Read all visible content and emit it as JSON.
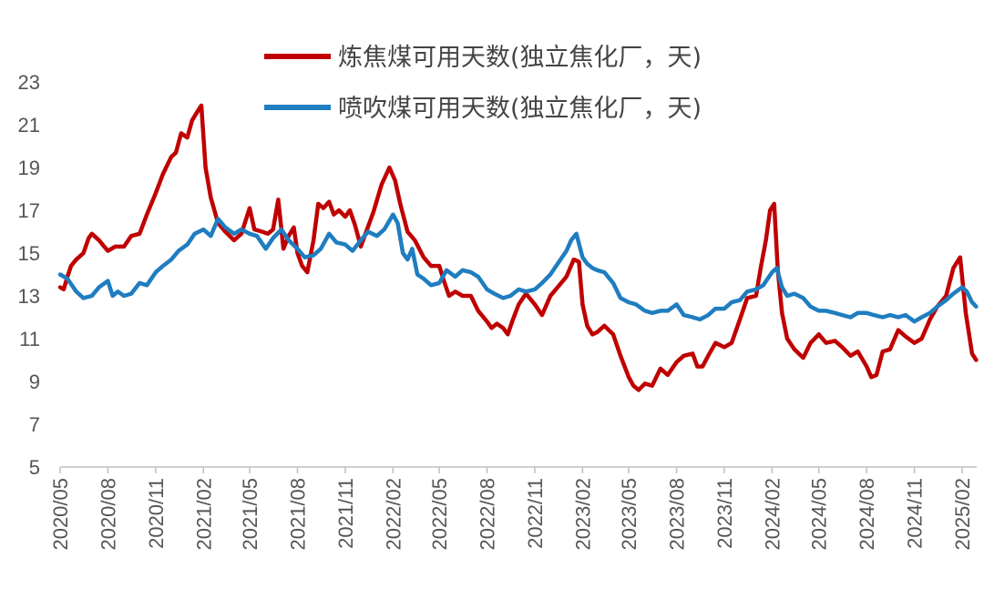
{
  "chart_data": {
    "type": "line",
    "title": "",
    "xlabel": "",
    "ylabel": "",
    "ylim": [
      5,
      23
    ],
    "y_ticks": [
      5,
      7,
      9,
      11,
      13,
      15,
      17,
      19,
      21,
      23
    ],
    "x_range": [
      "2020-05-01",
      "2025-03-01"
    ],
    "x_tick_labels": [
      "2020/05",
      "2020/08",
      "2020/11",
      "2021/02",
      "2021/05",
      "2021/08",
      "2021/11",
      "2022/02",
      "2022/05",
      "2022/08",
      "2022/11",
      "2023/02",
      "2023/05",
      "2023/08",
      "2023/11",
      "2024/02",
      "2024/05",
      "2024/08",
      "2024/11",
      "2025/02"
    ],
    "grid": false,
    "legend_position": "top",
    "series": [
      {
        "name": "炼焦煤可用天数(独立焦化厂，天)",
        "color": "#C00000",
        "points": [
          [
            "2020-05-01",
            13.4
          ],
          [
            "2020-05-08",
            13.3
          ],
          [
            "2020-05-15",
            13.9
          ],
          [
            "2020-05-22",
            14.4
          ],
          [
            "2020-06-01",
            14.7
          ],
          [
            "2020-06-15",
            15.0
          ],
          [
            "2020-06-25",
            15.7
          ],
          [
            "2020-07-01",
            15.9
          ],
          [
            "2020-07-15",
            15.6
          ],
          [
            "2020-07-25",
            15.3
          ],
          [
            "2020-08-01",
            15.1
          ],
          [
            "2020-08-15",
            15.3
          ],
          [
            "2020-09-01",
            15.3
          ],
          [
            "2020-09-15",
            15.8
          ],
          [
            "2020-10-01",
            15.9
          ],
          [
            "2020-10-15",
            16.8
          ],
          [
            "2020-11-01",
            17.8
          ],
          [
            "2020-11-15",
            18.7
          ],
          [
            "2020-12-01",
            19.5
          ],
          [
            "2020-12-10",
            19.7
          ],
          [
            "2020-12-20",
            20.6
          ],
          [
            "2021-01-01",
            20.4
          ],
          [
            "2021-01-10",
            21.2
          ],
          [
            "2021-01-20",
            21.6
          ],
          [
            "2021-01-28",
            21.9
          ],
          [
            "2021-02-05",
            19.0
          ],
          [
            "2021-02-15",
            17.6
          ],
          [
            "2021-03-01",
            16.4
          ],
          [
            "2021-03-15",
            16.0
          ],
          [
            "2021-04-01",
            15.6
          ],
          [
            "2021-04-15",
            15.9
          ],
          [
            "2021-05-01",
            17.1
          ],
          [
            "2021-05-10",
            16.1
          ],
          [
            "2021-05-25",
            16.0
          ],
          [
            "2021-06-05",
            15.9
          ],
          [
            "2021-06-15",
            16.1
          ],
          [
            "2021-06-25",
            17.5
          ],
          [
            "2021-07-05",
            15.2
          ],
          [
            "2021-07-15",
            15.8
          ],
          [
            "2021-07-25",
            16.2
          ],
          [
            "2021-08-01",
            15.0
          ],
          [
            "2021-08-10",
            14.4
          ],
          [
            "2021-08-20",
            14.1
          ],
          [
            "2021-09-01",
            15.6
          ],
          [
            "2021-09-10",
            17.3
          ],
          [
            "2021-09-20",
            17.1
          ],
          [
            "2021-10-01",
            17.4
          ],
          [
            "2021-10-10",
            16.8
          ],
          [
            "2021-10-20",
            17.0
          ],
          [
            "2021-11-01",
            16.7
          ],
          [
            "2021-11-10",
            17.0
          ],
          [
            "2021-11-20",
            16.3
          ],
          [
            "2021-12-01",
            15.3
          ],
          [
            "2021-12-10",
            15.9
          ],
          [
            "2021-12-25",
            16.9
          ],
          [
            "2022-01-10",
            18.2
          ],
          [
            "2022-01-25",
            19.0
          ],
          [
            "2022-02-05",
            18.4
          ],
          [
            "2022-02-15",
            17.3
          ],
          [
            "2022-03-01",
            16.0
          ],
          [
            "2022-03-15",
            15.6
          ],
          [
            "2022-04-01",
            14.8
          ],
          [
            "2022-04-15",
            14.4
          ],
          [
            "2022-05-01",
            14.4
          ],
          [
            "2022-05-10",
            13.7
          ],
          [
            "2022-05-20",
            13.0
          ],
          [
            "2022-06-01",
            13.2
          ],
          [
            "2022-06-15",
            13.0
          ],
          [
            "2022-07-01",
            13.0
          ],
          [
            "2022-07-15",
            12.3
          ],
          [
            "2022-08-01",
            11.8
          ],
          [
            "2022-08-10",
            11.5
          ],
          [
            "2022-08-20",
            11.7
          ],
          [
            "2022-09-01",
            11.5
          ],
          [
            "2022-09-10",
            11.2
          ],
          [
            "2022-09-20",
            11.9
          ],
          [
            "2022-10-01",
            12.6
          ],
          [
            "2022-10-15",
            13.1
          ],
          [
            "2022-11-01",
            12.6
          ],
          [
            "2022-11-15",
            12.1
          ],
          [
            "2022-12-01",
            13.0
          ],
          [
            "2022-12-15",
            13.4
          ],
          [
            "2023-01-01",
            13.9
          ],
          [
            "2023-01-15",
            14.7
          ],
          [
            "2023-01-25",
            14.6
          ],
          [
            "2023-02-01",
            12.6
          ],
          [
            "2023-02-10",
            11.6
          ],
          [
            "2023-02-20",
            11.2
          ],
          [
            "2023-03-01",
            11.3
          ],
          [
            "2023-03-15",
            11.6
          ],
          [
            "2023-04-01",
            11.2
          ],
          [
            "2023-04-15",
            10.2
          ],
          [
            "2023-05-01",
            9.2
          ],
          [
            "2023-05-10",
            8.8
          ],
          [
            "2023-05-20",
            8.6
          ],
          [
            "2023-06-01",
            8.9
          ],
          [
            "2023-06-15",
            8.8
          ],
          [
            "2023-07-01",
            9.6
          ],
          [
            "2023-07-15",
            9.3
          ],
          [
            "2023-08-01",
            9.9
          ],
          [
            "2023-08-15",
            10.2
          ],
          [
            "2023-09-01",
            10.3
          ],
          [
            "2023-09-10",
            9.7
          ],
          [
            "2023-09-20",
            9.7
          ],
          [
            "2023-10-01",
            10.2
          ],
          [
            "2023-10-15",
            10.8
          ],
          [
            "2023-11-01",
            10.6
          ],
          [
            "2023-11-15",
            10.8
          ],
          [
            "2023-12-01",
            11.9
          ],
          [
            "2023-12-15",
            12.9
          ],
          [
            "2024-01-01",
            13.0
          ],
          [
            "2024-01-10",
            14.3
          ],
          [
            "2024-01-20",
            15.6
          ],
          [
            "2024-01-28",
            17.0
          ],
          [
            "2024-02-05",
            17.3
          ],
          [
            "2024-02-12",
            14.2
          ],
          [
            "2024-02-20",
            12.2
          ],
          [
            "2024-03-01",
            11.0
          ],
          [
            "2024-03-15",
            10.5
          ],
          [
            "2024-04-01",
            10.1
          ],
          [
            "2024-04-15",
            10.8
          ],
          [
            "2024-05-01",
            11.2
          ],
          [
            "2024-05-15",
            10.8
          ],
          [
            "2024-06-01",
            10.9
          ],
          [
            "2024-06-15",
            10.6
          ],
          [
            "2024-07-01",
            10.2
          ],
          [
            "2024-07-15",
            10.4
          ],
          [
            "2024-08-01",
            9.7
          ],
          [
            "2024-08-10",
            9.2
          ],
          [
            "2024-08-20",
            9.3
          ],
          [
            "2024-09-01",
            10.4
          ],
          [
            "2024-09-15",
            10.5
          ],
          [
            "2024-10-01",
            11.4
          ],
          [
            "2024-10-15",
            11.1
          ],
          [
            "2024-11-01",
            10.8
          ],
          [
            "2024-11-15",
            11.0
          ],
          [
            "2024-12-01",
            11.9
          ],
          [
            "2024-12-15",
            12.5
          ],
          [
            "2025-01-01",
            13.0
          ],
          [
            "2025-01-15",
            14.3
          ],
          [
            "2025-01-28",
            14.8
          ],
          [
            "2025-02-08",
            12.2
          ],
          [
            "2025-02-20",
            10.3
          ],
          [
            "2025-02-28",
            10.0
          ]
        ]
      },
      {
        "name": "喷吹煤可用天数(独立焦化厂，天)",
        "color": "#1F7DC0",
        "points": [
          [
            "2020-05-01",
            14.0
          ],
          [
            "2020-05-15",
            13.8
          ],
          [
            "2020-06-01",
            13.2
          ],
          [
            "2020-06-15",
            12.9
          ],
          [
            "2020-07-01",
            13.0
          ],
          [
            "2020-07-15",
            13.4
          ],
          [
            "2020-08-01",
            13.7
          ],
          [
            "2020-08-10",
            13.0
          ],
          [
            "2020-08-20",
            13.2
          ],
          [
            "2020-09-01",
            13.0
          ],
          [
            "2020-09-15",
            13.1
          ],
          [
            "2020-10-01",
            13.6
          ],
          [
            "2020-10-15",
            13.5
          ],
          [
            "2020-11-01",
            14.1
          ],
          [
            "2020-11-15",
            14.4
          ],
          [
            "2020-12-01",
            14.7
          ],
          [
            "2020-12-15",
            15.1
          ],
          [
            "2021-01-01",
            15.4
          ],
          [
            "2021-01-15",
            15.9
          ],
          [
            "2021-02-01",
            16.1
          ],
          [
            "2021-02-15",
            15.8
          ],
          [
            "2021-03-01",
            16.6
          ],
          [
            "2021-03-15",
            16.2
          ],
          [
            "2021-04-01",
            15.9
          ],
          [
            "2021-04-15",
            16.1
          ],
          [
            "2021-05-01",
            15.9
          ],
          [
            "2021-05-15",
            15.8
          ],
          [
            "2021-06-01",
            15.2
          ],
          [
            "2021-06-15",
            15.7
          ],
          [
            "2021-07-01",
            16.1
          ],
          [
            "2021-07-15",
            15.6
          ],
          [
            "2021-08-01",
            15.2
          ],
          [
            "2021-08-15",
            14.8
          ],
          [
            "2021-09-01",
            14.9
          ],
          [
            "2021-09-15",
            15.2
          ],
          [
            "2021-10-01",
            15.9
          ],
          [
            "2021-10-15",
            15.5
          ],
          [
            "2021-11-01",
            15.4
          ],
          [
            "2021-11-15",
            15.1
          ],
          [
            "2021-12-01",
            15.6
          ],
          [
            "2021-12-15",
            16.0
          ],
          [
            "2022-01-01",
            15.8
          ],
          [
            "2022-01-15",
            16.1
          ],
          [
            "2022-02-01",
            16.8
          ],
          [
            "2022-02-10",
            16.4
          ],
          [
            "2022-02-20",
            15.0
          ],
          [
            "2022-03-01",
            14.7
          ],
          [
            "2022-03-10",
            15.2
          ],
          [
            "2022-03-20",
            14.0
          ],
          [
            "2022-04-01",
            13.8
          ],
          [
            "2022-04-15",
            13.5
          ],
          [
            "2022-05-01",
            13.6
          ],
          [
            "2022-05-15",
            14.2
          ],
          [
            "2022-06-01",
            13.9
          ],
          [
            "2022-06-15",
            14.2
          ],
          [
            "2022-07-01",
            14.1
          ],
          [
            "2022-07-15",
            13.9
          ],
          [
            "2022-08-01",
            13.3
          ],
          [
            "2022-08-15",
            13.1
          ],
          [
            "2022-09-01",
            12.9
          ],
          [
            "2022-09-15",
            13.0
          ],
          [
            "2022-10-01",
            13.3
          ],
          [
            "2022-10-15",
            13.2
          ],
          [
            "2022-11-01",
            13.3
          ],
          [
            "2022-11-15",
            13.6
          ],
          [
            "2022-12-01",
            14.0
          ],
          [
            "2022-12-15",
            14.5
          ],
          [
            "2023-01-01",
            15.1
          ],
          [
            "2023-01-10",
            15.6
          ],
          [
            "2023-01-20",
            15.9
          ],
          [
            "2023-02-01",
            14.8
          ],
          [
            "2023-02-10",
            14.5
          ],
          [
            "2023-02-20",
            14.3
          ],
          [
            "2023-03-01",
            14.2
          ],
          [
            "2023-03-15",
            14.1
          ],
          [
            "2023-04-01",
            13.6
          ],
          [
            "2023-04-15",
            12.9
          ],
          [
            "2023-05-01",
            12.7
          ],
          [
            "2023-05-15",
            12.6
          ],
          [
            "2023-06-01",
            12.3
          ],
          [
            "2023-06-15",
            12.2
          ],
          [
            "2023-07-01",
            12.3
          ],
          [
            "2023-07-15",
            12.3
          ],
          [
            "2023-08-01",
            12.6
          ],
          [
            "2023-08-15",
            12.1
          ],
          [
            "2023-09-01",
            12.0
          ],
          [
            "2023-09-15",
            11.9
          ],
          [
            "2023-10-01",
            12.1
          ],
          [
            "2023-10-15",
            12.4
          ],
          [
            "2023-11-01",
            12.4
          ],
          [
            "2023-11-15",
            12.7
          ],
          [
            "2023-12-01",
            12.8
          ],
          [
            "2023-12-15",
            13.2
          ],
          [
            "2024-01-01",
            13.3
          ],
          [
            "2024-01-15",
            13.5
          ],
          [
            "2024-02-01",
            14.1
          ],
          [
            "2024-02-10",
            14.3
          ],
          [
            "2024-02-20",
            13.4
          ],
          [
            "2024-03-01",
            13.0
          ],
          [
            "2024-03-15",
            13.1
          ],
          [
            "2024-04-01",
            12.9
          ],
          [
            "2024-04-15",
            12.5
          ],
          [
            "2024-05-01",
            12.3
          ],
          [
            "2024-05-15",
            12.3
          ],
          [
            "2024-06-01",
            12.2
          ],
          [
            "2024-06-15",
            12.1
          ],
          [
            "2024-07-01",
            12.0
          ],
          [
            "2024-07-15",
            12.2
          ],
          [
            "2024-08-01",
            12.2
          ],
          [
            "2024-08-15",
            12.1
          ],
          [
            "2024-09-01",
            12.0
          ],
          [
            "2024-09-15",
            12.1
          ],
          [
            "2024-10-01",
            12.0
          ],
          [
            "2024-10-15",
            12.1
          ],
          [
            "2024-11-01",
            11.8
          ],
          [
            "2024-11-15",
            12.0
          ],
          [
            "2024-12-01",
            12.2
          ],
          [
            "2024-12-15",
            12.5
          ],
          [
            "2025-01-01",
            12.8
          ],
          [
            "2025-01-15",
            13.1
          ],
          [
            "2025-02-01",
            13.4
          ],
          [
            "2025-02-10",
            13.2
          ],
          [
            "2025-02-20",
            12.7
          ],
          [
            "2025-02-28",
            12.5
          ]
        ]
      }
    ]
  }
}
